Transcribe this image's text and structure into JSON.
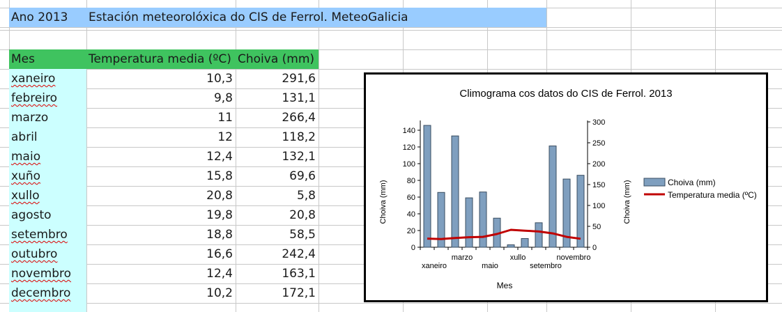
{
  "sheet": {
    "year_label": "Ano 2013",
    "title": "Estación meteorolóxica do CIS de Ferrol. MeteoGalicia",
    "headers": {
      "month": "Mes",
      "temperature": "Temperatura media (ºC)",
      "rain": "Choiva (mm)"
    },
    "rows": [
      {
        "month": "xaneiro",
        "temp": "10,3",
        "rain": "291,6"
      },
      {
        "month": "febreiro",
        "temp": "9,8",
        "rain": "131,1"
      },
      {
        "month": "marzo",
        "temp": "11",
        "rain": "266,4"
      },
      {
        "month": "abril",
        "temp": "12",
        "rain": "118,2"
      },
      {
        "month": "maio",
        "temp": "12,4",
        "rain": "132,1"
      },
      {
        "month": "xuño",
        "temp": "15,8",
        "rain": "69,6"
      },
      {
        "month": "xullo",
        "temp": "20,8",
        "rain": "5,8"
      },
      {
        "month": "agosto",
        "temp": "19,8",
        "rain": "20,8"
      },
      {
        "month": "setembro",
        "temp": "18,8",
        "rain": "58,5"
      },
      {
        "month": "outubro",
        "temp": "16,6",
        "rain": "242,4"
      },
      {
        "month": "novembro",
        "temp": "12,4",
        "rain": "163,1"
      },
      {
        "month": "decembro",
        "temp": "10,2",
        "rain": "172,1"
      }
    ]
  },
  "colors": {
    "title_fill": "#99ccff",
    "header_fill": "#3fc35f",
    "month_fill": "#ccffff",
    "bar_fill": "#7f9fbf",
    "line_color": "#c00000"
  },
  "chart_data": {
    "type": "bar",
    "title": "Climograma cos datos do CIS de Ferrol. 2013",
    "xlabel": "Mes",
    "ylabel_left": "Choiva (mm)",
    "ylabel_right": "Choiva (mm)",
    "categories": [
      "xaneiro",
      "febreiro",
      "marzo",
      "abril",
      "maio",
      "xuño",
      "xullo",
      "agosto",
      "setembro",
      "outubro",
      "novembro",
      "decembro"
    ],
    "shown_tick_labels": [
      "xaneiro",
      "marzo",
      "maio",
      "xullo",
      "setembro",
      "novembro"
    ],
    "left_ylim": [
      0,
      150
    ],
    "left_ticks": [
      "0",
      "20",
      "40",
      "60",
      "80",
      "100",
      "120",
      "140"
    ],
    "right_ylim": [
      0,
      300
    ],
    "right_ticks": [
      "0",
      "50",
      "100",
      "150",
      "200",
      "250",
      "300"
    ],
    "series": [
      {
        "name": "Choiva (mm)",
        "kind": "bar",
        "axis": "left",
        "values": [
          145.8,
          65.6,
          133.2,
          59.1,
          66.1,
          34.8,
          2.9,
          10.4,
          29.3,
          121.2,
          81.6,
          86.1
        ]
      },
      {
        "name": "Temperatura media (ºC)",
        "kind": "line",
        "axis": "left",
        "values": [
          10.3,
          9.8,
          11,
          12,
          12.4,
          15.8,
          20.8,
          19.8,
          18.8,
          16.6,
          12.4,
          10.2
        ]
      }
    ],
    "legend_position": "right",
    "grid": false
  }
}
